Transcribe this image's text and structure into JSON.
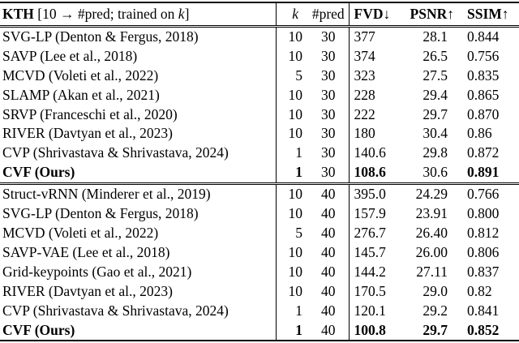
{
  "table": {
    "title": {
      "bold": "KTH",
      "pre": " [10 → #pred; trained on ",
      "k_italic": "k",
      "post": "]"
    },
    "columns": {
      "k_label": "k",
      "pred_label": "#pred",
      "fvd_label": "FVD↓",
      "psnr_label": "PSNR↑",
      "ssim_label": "SSIM↑"
    },
    "blocks": [
      {
        "rows": [
          {
            "method": "SVG-LP (Denton & Fergus, 2018)",
            "k": "10",
            "pred": "30",
            "fvd": "377",
            "psnr": "28.1",
            "ssim": "0.844",
            "bold": []
          },
          {
            "method": "SAVP (Lee et al., 2018)",
            "k": "10",
            "pred": "30",
            "fvd": "374",
            "psnr": "26.5",
            "ssim": "0.756",
            "bold": []
          },
          {
            "method": "MCVD (Voleti et al., 2022)",
            "k": "5",
            "pred": "30",
            "fvd": "323",
            "psnr": "27.5",
            "ssim": "0.835",
            "bold": []
          },
          {
            "method": "SLAMP (Akan et al., 2021)",
            "k": "10",
            "pred": "30",
            "fvd": "228",
            "psnr": "29.4",
            "ssim": "0.865",
            "bold": []
          },
          {
            "method": "SRVP (Franceschi et al., 2020)",
            "k": "10",
            "pred": "30",
            "fvd": "222",
            "psnr": "29.7",
            "ssim": "0.870",
            "bold": []
          },
          {
            "method": "RIVER (Davtyan et al., 2023)",
            "k": "10",
            "pred": "30",
            "fvd": "180",
            "psnr": "30.4",
            "ssim": "0.86",
            "bold": []
          },
          {
            "method": "CVP (Shrivastava & Shrivastava, 2024)",
            "k": "1",
            "pred": "30",
            "fvd": "140.6",
            "psnr": "29.8",
            "ssim": "0.872",
            "bold": []
          },
          {
            "method": "CVF (Ours)",
            "k": "1",
            "pred": "30",
            "fvd": "108.6",
            "psnr": "30.6",
            "ssim": "0.891",
            "bold": [
              "method",
              "k",
              "fvd",
              "ssim"
            ]
          }
        ]
      },
      {
        "rows": [
          {
            "method": "Struct-vRNN (Minderer et al., 2019)",
            "k": "10",
            "pred": "40",
            "fvd": "395.0",
            "psnr": "24.29",
            "ssim": "0.766",
            "bold": []
          },
          {
            "method": "SVG-LP (Denton & Fergus, 2018)",
            "k": "10",
            "pred": "40",
            "fvd": "157.9",
            "psnr": "23.91",
            "ssim": "0.800",
            "bold": []
          },
          {
            "method": "MCVD (Voleti et al., 2022)",
            "k": "5",
            "pred": "40",
            "fvd": "276.7",
            "psnr": "26.40",
            "ssim": "0.812",
            "bold": []
          },
          {
            "method": "SAVP-VAE (Lee et al., 2018)",
            "k": "10",
            "pred": "40",
            "fvd": "145.7",
            "psnr": "26.00",
            "ssim": "0.806",
            "bold": []
          },
          {
            "method": "Grid-keypoints (Gao et al., 2021)",
            "k": "10",
            "pred": "40",
            "fvd": "144.2",
            "psnr": "27.11",
            "ssim": "0.837",
            "bold": []
          },
          {
            "method": "RIVER (Davtyan et al., 2023)",
            "k": "10",
            "pred": "40",
            "fvd": "170.5",
            "psnr": "29.0",
            "ssim": "0.82",
            "bold": []
          },
          {
            "method": "CVP (Shrivastava & Shrivastava, 2024)",
            "k": "1",
            "pred": "40",
            "fvd": "120.1",
            "psnr": "29.2",
            "ssim": "0.841",
            "bold": []
          },
          {
            "method": "CVF (Ours)",
            "k": "1",
            "pred": "40",
            "fvd": "100.8",
            "psnr": "29.7",
            "ssim": "0.852",
            "bold": [
              "method",
              "k",
              "fvd",
              "psnr",
              "ssim"
            ]
          }
        ]
      }
    ]
  }
}
